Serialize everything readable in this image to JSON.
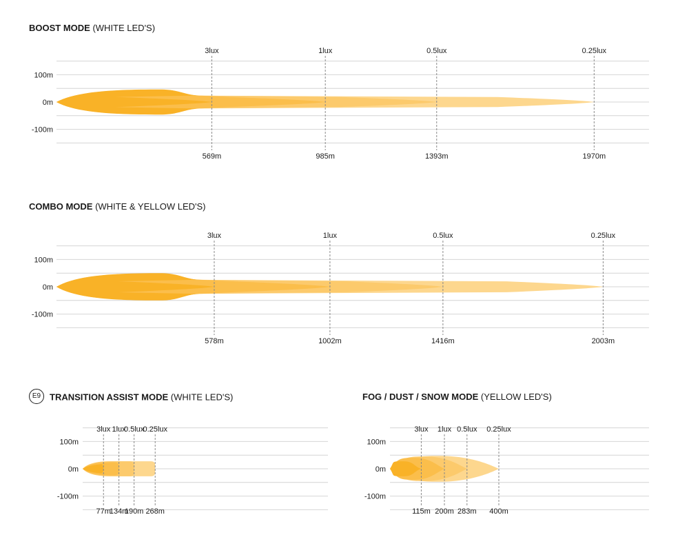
{
  "chart_data": [
    {
      "type": "area",
      "title_bold": "BOOST MODE",
      "title_rest": " (WHITE LED'S)",
      "has_e9_badge": false,
      "y_ticks": [
        {
          "value": 100,
          "label": "100m"
        },
        {
          "value": 0,
          "label": "0m"
        },
        {
          "value": -100,
          "label": "-100m"
        }
      ],
      "ylim": [
        -150,
        150
      ],
      "xlim": [
        0,
        2200
      ],
      "zones": [
        {
          "lux_label": "3lux",
          "distance": 569,
          "distance_label": "569m",
          "half_width": 92
        },
        {
          "lux_label": "1lux",
          "distance": 985,
          "distance_label": "985m",
          "half_width": 90
        },
        {
          "lux_label": "0.5lux",
          "distance": 1393,
          "distance_label": "1393m",
          "half_width": 90
        },
        {
          "lux_label": "0.25lux",
          "distance": 1970,
          "distance_label": "1970m",
          "half_width": 90
        }
      ],
      "colors": [
        "#fdd78e",
        "#fcca6c",
        "#fbbe4b",
        "#f9b227"
      ]
    },
    {
      "type": "area",
      "title_bold": "COMBO MODE",
      "title_rest": " (WHITE & YELLOW LED'S)",
      "has_e9_badge": false,
      "y_ticks": [
        {
          "value": 100,
          "label": "100m"
        },
        {
          "value": 0,
          "label": "0m"
        },
        {
          "value": -100,
          "label": "-100m"
        }
      ],
      "ylim": [
        -150,
        150
      ],
      "xlim": [
        0,
        2200
      ],
      "zones": [
        {
          "lux_label": "3lux",
          "distance": 578,
          "distance_label": "578m",
          "half_width": 100
        },
        {
          "lux_label": "1lux",
          "distance": 1002,
          "distance_label": "1002m",
          "half_width": 98
        },
        {
          "lux_label": "0.5lux",
          "distance": 1416,
          "distance_label": "1416m",
          "half_width": 98
        },
        {
          "lux_label": "0.25lux",
          "distance": 2003,
          "distance_label": "2003m",
          "half_width": 98
        }
      ],
      "colors": [
        "#fdd78e",
        "#fcca6c",
        "#fbbe4b",
        "#f9b227"
      ]
    },
    {
      "type": "area",
      "title_bold": "TRANSITION ASSIST MODE",
      "title_rest": " (WHITE LED'S)",
      "has_e9_badge": true,
      "badge_text": "E9",
      "y_ticks": [
        {
          "value": 100,
          "label": "100m"
        },
        {
          "value": 0,
          "label": "0m"
        },
        {
          "value": -100,
          "label": "-100m"
        }
      ],
      "ylim": [
        -150,
        150
      ],
      "xlim": [
        0,
        1000
      ],
      "zones": [
        {
          "lux_label": "3lux",
          "distance": 77,
          "distance_label": "77m",
          "half_width": 35
        },
        {
          "lux_label": "1lux",
          "distance": 134,
          "distance_label": "134m",
          "half_width": 48
        },
        {
          "lux_label": "0.5lux",
          "distance": 190,
          "distance_label": "190m",
          "half_width": 55
        },
        {
          "lux_label": "0.25lux",
          "distance": 268,
          "distance_label": "268m",
          "half_width": 55
        }
      ],
      "colors": [
        "#fdd78e",
        "#fcca6c",
        "#fbbe4b",
        "#f9b227"
      ]
    },
    {
      "type": "area",
      "title_bold": "FOG / DUST / SNOW MODE",
      "title_rest": " (YELLOW LED'S)",
      "has_e9_badge": false,
      "y_ticks": [
        {
          "value": 100,
          "label": "100m"
        },
        {
          "value": 0,
          "label": "0m"
        },
        {
          "value": -100,
          "label": "-100m"
        }
      ],
      "ylim": [
        -150,
        150
      ],
      "xlim": [
        0,
        1000
      ],
      "zones": [
        {
          "lux_label": "3lux",
          "distance": 115,
          "distance_label": "115m",
          "half_width": 55
        },
        {
          "lux_label": "1lux",
          "distance": 200,
          "distance_label": "200m",
          "half_width": 80
        },
        {
          "lux_label": "0.5lux",
          "distance": 283,
          "distance_label": "283m",
          "half_width": 90
        },
        {
          "lux_label": "0.25lux",
          "distance": 400,
          "distance_label": "400m",
          "half_width": 95
        }
      ],
      "colors": [
        "#fdd78e",
        "#fcca6c",
        "#fbbe4b",
        "#f9b227"
      ]
    }
  ]
}
